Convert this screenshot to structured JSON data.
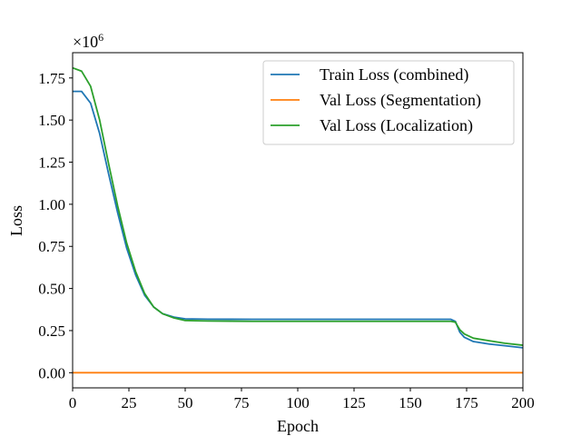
{
  "chart_data": {
    "type": "line",
    "xlabel": "Epoch",
    "ylabel": "Loss",
    "y_scale_multiplier": "×10",
    "y_scale_exponent": "6",
    "xlim": [
      0,
      200
    ],
    "ylim": [
      -0.09,
      1.9
    ],
    "xticks": [
      "0",
      "25",
      "50",
      "75",
      "100",
      "125",
      "150",
      "175",
      "200"
    ],
    "yticks": [
      "0.00",
      "0.25",
      "0.50",
      "0.75",
      "1.00",
      "1.25",
      "1.50",
      "1.75"
    ],
    "legend_position": "top-right",
    "grid": false,
    "series": [
      {
        "name": "Train Loss (combined)",
        "color": "#1f77b4",
        "points": [
          [
            0,
            1.67
          ],
          [
            4,
            1.67
          ],
          [
            8,
            1.6
          ],
          [
            12,
            1.42
          ],
          [
            16,
            1.18
          ],
          [
            20,
            0.95
          ],
          [
            24,
            0.74
          ],
          [
            28,
            0.58
          ],
          [
            32,
            0.46
          ],
          [
            36,
            0.39
          ],
          [
            40,
            0.35
          ],
          [
            45,
            0.33
          ],
          [
            50,
            0.32
          ],
          [
            60,
            0.318
          ],
          [
            80,
            0.317
          ],
          [
            100,
            0.317
          ],
          [
            120,
            0.317
          ],
          [
            140,
            0.317
          ],
          [
            160,
            0.317
          ],
          [
            168,
            0.317
          ],
          [
            170,
            0.305
          ],
          [
            172,
            0.24
          ],
          [
            174,
            0.21
          ],
          [
            178,
            0.185
          ],
          [
            185,
            0.17
          ],
          [
            192,
            0.16
          ],
          [
            200,
            0.148
          ]
        ]
      },
      {
        "name": "Val Loss (Segmentation)",
        "color": "#ff7f0e",
        "points": [
          [
            0,
            0.0
          ],
          [
            200,
            0.0
          ]
        ]
      },
      {
        "name": "Val Loss (Localization)",
        "color": "#2ca02c",
        "points": [
          [
            0,
            1.81
          ],
          [
            4,
            1.79
          ],
          [
            8,
            1.7
          ],
          [
            12,
            1.5
          ],
          [
            16,
            1.24
          ],
          [
            20,
            0.99
          ],
          [
            24,
            0.77
          ],
          [
            28,
            0.6
          ],
          [
            32,
            0.47
          ],
          [
            36,
            0.39
          ],
          [
            40,
            0.35
          ],
          [
            45,
            0.325
          ],
          [
            50,
            0.31
          ],
          [
            60,
            0.307
          ],
          [
            80,
            0.305
          ],
          [
            100,
            0.305
          ],
          [
            120,
            0.305
          ],
          [
            140,
            0.305
          ],
          [
            160,
            0.305
          ],
          [
            168,
            0.305
          ],
          [
            170,
            0.3
          ],
          [
            172,
            0.255
          ],
          [
            174,
            0.23
          ],
          [
            178,
            0.205
          ],
          [
            185,
            0.19
          ],
          [
            192,
            0.175
          ],
          [
            200,
            0.163
          ]
        ]
      }
    ]
  }
}
